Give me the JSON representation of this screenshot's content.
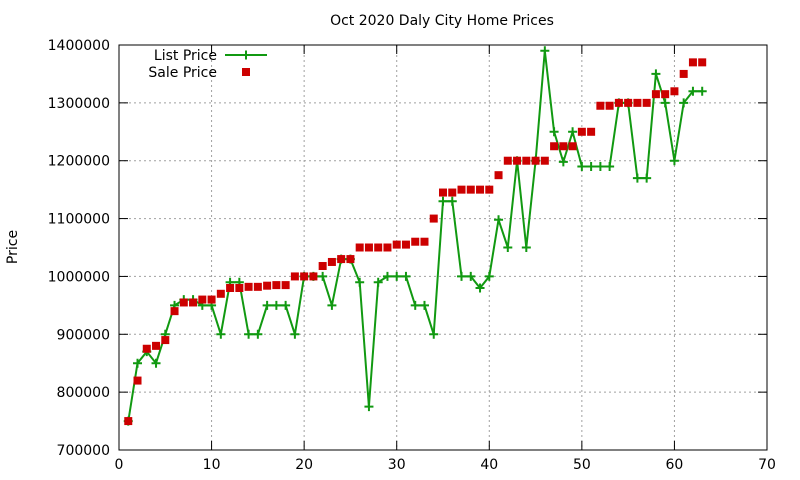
{
  "chart_data": {
    "type": "line",
    "title": "Oct 2020 Daly City Home Prices",
    "xlabel": "",
    "ylabel": "Price",
    "xlim": [
      0,
      70
    ],
    "ylim": [
      700000,
      1400000
    ],
    "x_ticks": [
      0,
      10,
      20,
      30,
      40,
      50,
      60,
      70
    ],
    "y_ticks": [
      700000,
      800000,
      900000,
      1000000,
      1100000,
      1200000,
      1300000,
      1400000
    ],
    "grid": true,
    "legend_position": "top-left",
    "x": [
      1,
      2,
      3,
      4,
      5,
      6,
      7,
      8,
      9,
      10,
      11,
      12,
      13,
      14,
      15,
      16,
      17,
      18,
      19,
      20,
      21,
      22,
      23,
      24,
      25,
      26,
      27,
      28,
      29,
      30,
      31,
      32,
      33,
      34,
      35,
      36,
      37,
      38,
      39,
      40,
      41,
      42,
      43,
      44,
      45,
      46,
      47,
      48,
      49,
      50,
      51,
      52,
      53,
      54,
      55,
      56,
      57,
      58,
      59,
      60,
      61,
      62,
      63
    ],
    "series": [
      {
        "name": "List Price",
        "style": "linespoints",
        "marker": "plus",
        "color": "#119911",
        "values": [
          750000,
          850000,
          870000,
          850000,
          900000,
          950000,
          960000,
          960000,
          950000,
          950000,
          900000,
          990000,
          990000,
          900000,
          900000,
          950000,
          950000,
          950000,
          900000,
          1000000,
          1000000,
          1000000,
          950000,
          1030000,
          1030000,
          990000,
          775000,
          990000,
          1000000,
          1000000,
          1000000,
          950000,
          950000,
          900000,
          1130000,
          1130000,
          1000000,
          1000000,
          980000,
          1000000,
          1098000,
          1050000,
          1200000,
          1050000,
          1200000,
          1390000,
          1250000,
          1198000,
          1250000,
          1190000,
          1190000,
          1190000,
          1190000,
          1300000,
          1300000,
          1170000,
          1170000,
          1350000,
          1300000,
          1200000,
          1300000,
          1320000,
          1320000
        ]
      },
      {
        "name": "Sale Price",
        "style": "points",
        "marker": "square",
        "color": "#cc0000",
        "values": [
          750000,
          820000,
          875000,
          880000,
          890000,
          940000,
          955000,
          955000,
          960000,
          960000,
          970000,
          980000,
          980000,
          982000,
          982000,
          984000,
          985000,
          985000,
          1000000,
          1000000,
          1000000,
          1018000,
          1025000,
          1030000,
          1030000,
          1050000,
          1050000,
          1050000,
          1050000,
          1055000,
          1055000,
          1060000,
          1060000,
          1100000,
          1145000,
          1145000,
          1150000,
          1150000,
          1150000,
          1150000,
          1175000,
          1200000,
          1200000,
          1200000,
          1200000,
          1200000,
          1225000,
          1225000,
          1225000,
          1250000,
          1250000,
          1295000,
          1295000,
          1300000,
          1300000,
          1300000,
          1300000,
          1315000,
          1315000,
          1320000,
          1350000,
          1370000,
          1370000
        ]
      }
    ]
  }
}
